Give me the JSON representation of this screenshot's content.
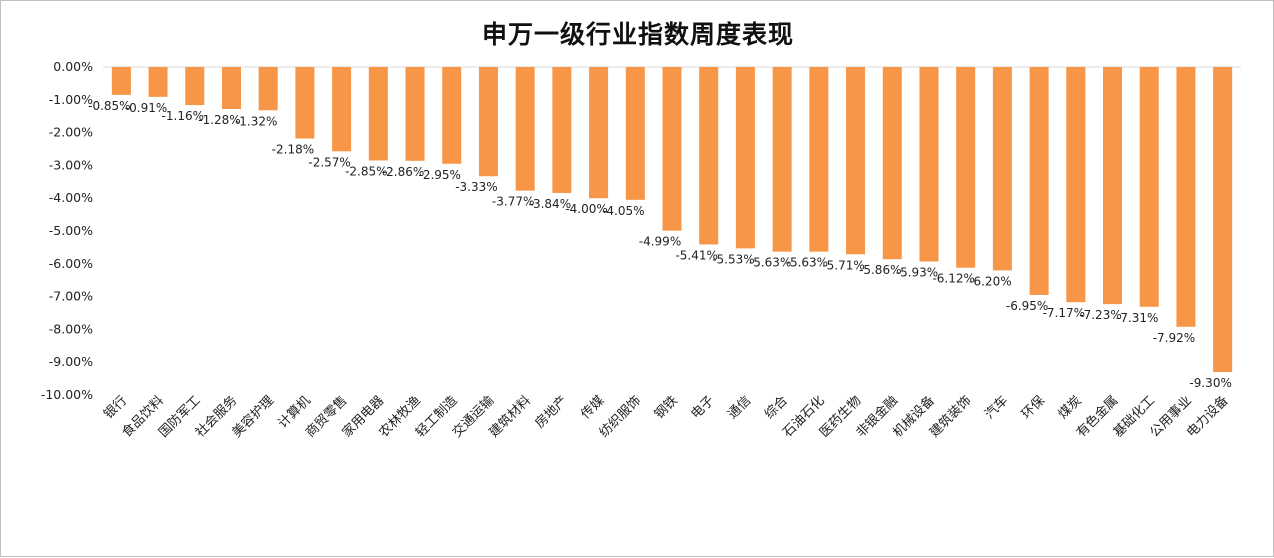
{
  "chart_data": {
    "type": "bar",
    "title": "申万一级行业指数周度表现",
    "xlabel": "",
    "ylabel": "",
    "ylim": [
      -10,
      0
    ],
    "ytick_step": 1,
    "value_format": "percent_2dp",
    "grid": false,
    "legend": "none",
    "bar_color": "#f79646",
    "categories": [
      "银行",
      "食品饮料",
      "国防军工",
      "社会服务",
      "美容护理",
      "计算机",
      "商贸零售",
      "家用电器",
      "农林牧渔",
      "轻工制造",
      "交通运输",
      "建筑材料",
      "房地产",
      "传媒",
      "纺织服饰",
      "钢铁",
      "电子",
      "通信",
      "综合",
      "石油石化",
      "医药生物",
      "非银金融",
      "机械设备",
      "建筑装饰",
      "汽车",
      "环保",
      "煤炭",
      "有色金属",
      "基础化工",
      "公用事业",
      "电力设备"
    ],
    "values": [
      -0.85,
      -0.91,
      -1.16,
      -1.28,
      -1.32,
      -2.18,
      -2.57,
      -2.85,
      -2.86,
      -2.95,
      -3.33,
      -3.77,
      -3.84,
      -4.0,
      -4.05,
      -4.99,
      -5.41,
      -5.53,
      -5.63,
      -5.63,
      -5.71,
      -5.86,
      -5.93,
      -6.12,
      -6.2,
      -6.95,
      -7.17,
      -7.23,
      -7.31,
      -7.92,
      -9.3
    ]
  }
}
